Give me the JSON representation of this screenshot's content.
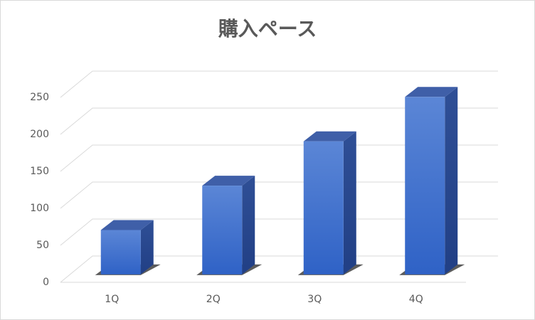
{
  "chart_data": {
    "type": "bar3d",
    "title": "購入ペース",
    "categories": [
      "1Q",
      "2Q",
      "3Q",
      "4Q"
    ],
    "values": [
      60,
      120,
      180,
      240
    ],
    "color": "#4472c4",
    "ylim": [
      0,
      250
    ],
    "yticks": [
      0,
      50,
      100,
      150,
      200,
      250
    ],
    "grid": true
  }
}
